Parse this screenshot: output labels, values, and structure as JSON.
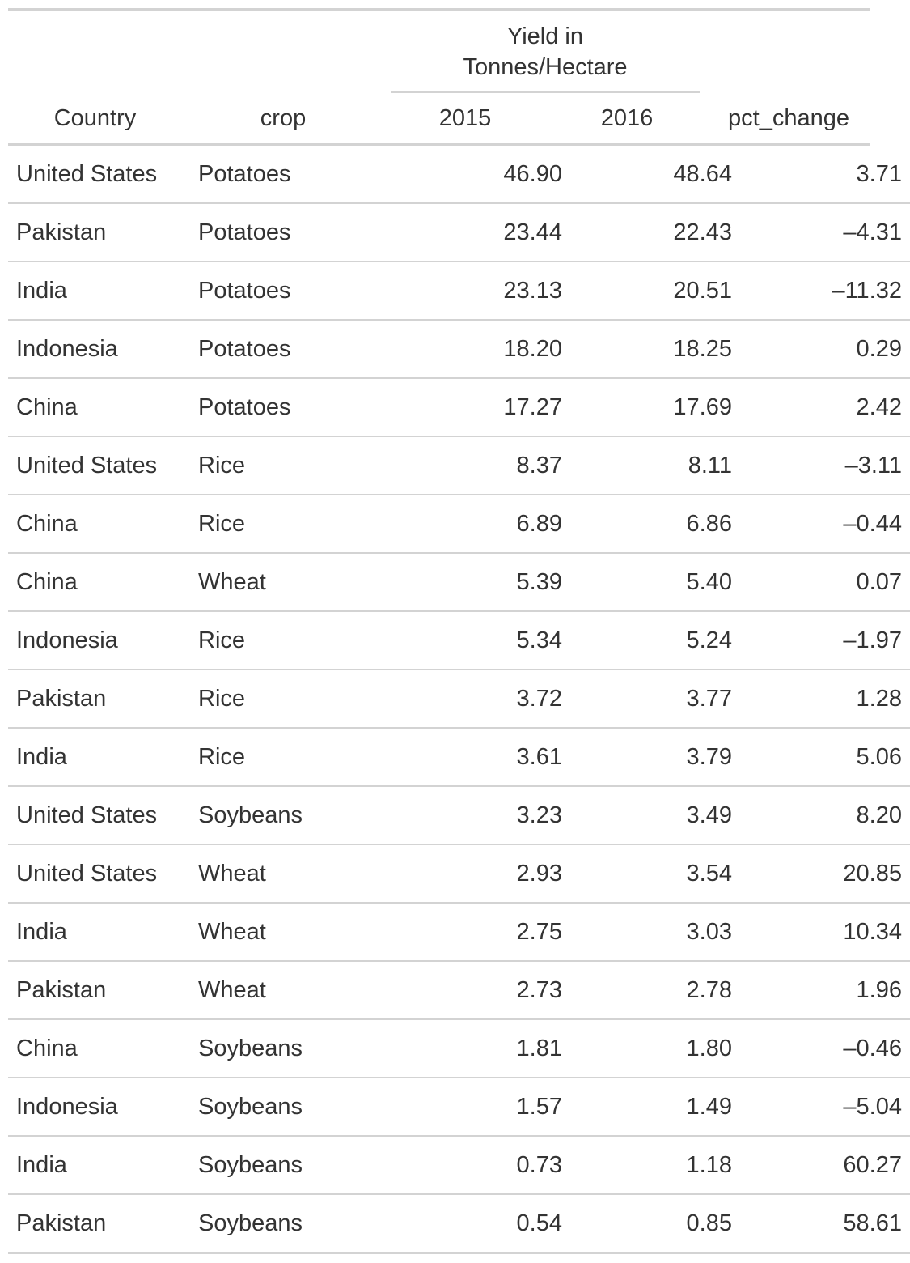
{
  "table": {
    "spanner_label": "Yield in\nTonnes/Hectare",
    "columns": [
      "Country",
      "crop",
      "2015",
      "2016",
      "pct_change"
    ],
    "rows": [
      [
        "United States",
        "Potatoes",
        "46.90",
        "48.64",
        "3.71"
      ],
      [
        "Pakistan",
        "Potatoes",
        "23.44",
        "22.43",
        "–4.31"
      ],
      [
        "India",
        "Potatoes",
        "23.13",
        "20.51",
        "–11.32"
      ],
      [
        "Indonesia",
        "Potatoes",
        "18.20",
        "18.25",
        "0.29"
      ],
      [
        "China",
        "Potatoes",
        "17.27",
        "17.69",
        "2.42"
      ],
      [
        "United States",
        "Rice",
        "8.37",
        "8.11",
        "–3.11"
      ],
      [
        "China",
        "Rice",
        "6.89",
        "6.86",
        "–0.44"
      ],
      [
        "China",
        "Wheat",
        "5.39",
        "5.40",
        "0.07"
      ],
      [
        "Indonesia",
        "Rice",
        "5.34",
        "5.24",
        "–1.97"
      ],
      [
        "Pakistan",
        "Rice",
        "3.72",
        "3.77",
        "1.28"
      ],
      [
        "India",
        "Rice",
        "3.61",
        "3.79",
        "5.06"
      ],
      [
        "United States",
        "Soybeans",
        "3.23",
        "3.49",
        "8.20"
      ],
      [
        "United States",
        "Wheat",
        "2.93",
        "3.54",
        "20.85"
      ],
      [
        "India",
        "Wheat",
        "2.75",
        "3.03",
        "10.34"
      ],
      [
        "Pakistan",
        "Wheat",
        "2.73",
        "2.78",
        "1.96"
      ],
      [
        "China",
        "Soybeans",
        "1.81",
        "1.80",
        "–0.46"
      ],
      [
        "Indonesia",
        "Soybeans",
        "1.57",
        "1.49",
        "–5.04"
      ],
      [
        "India",
        "Soybeans",
        "0.73",
        "1.18",
        "60.27"
      ],
      [
        "Pakistan",
        "Soybeans",
        "0.54",
        "0.85",
        "58.61"
      ]
    ]
  }
}
